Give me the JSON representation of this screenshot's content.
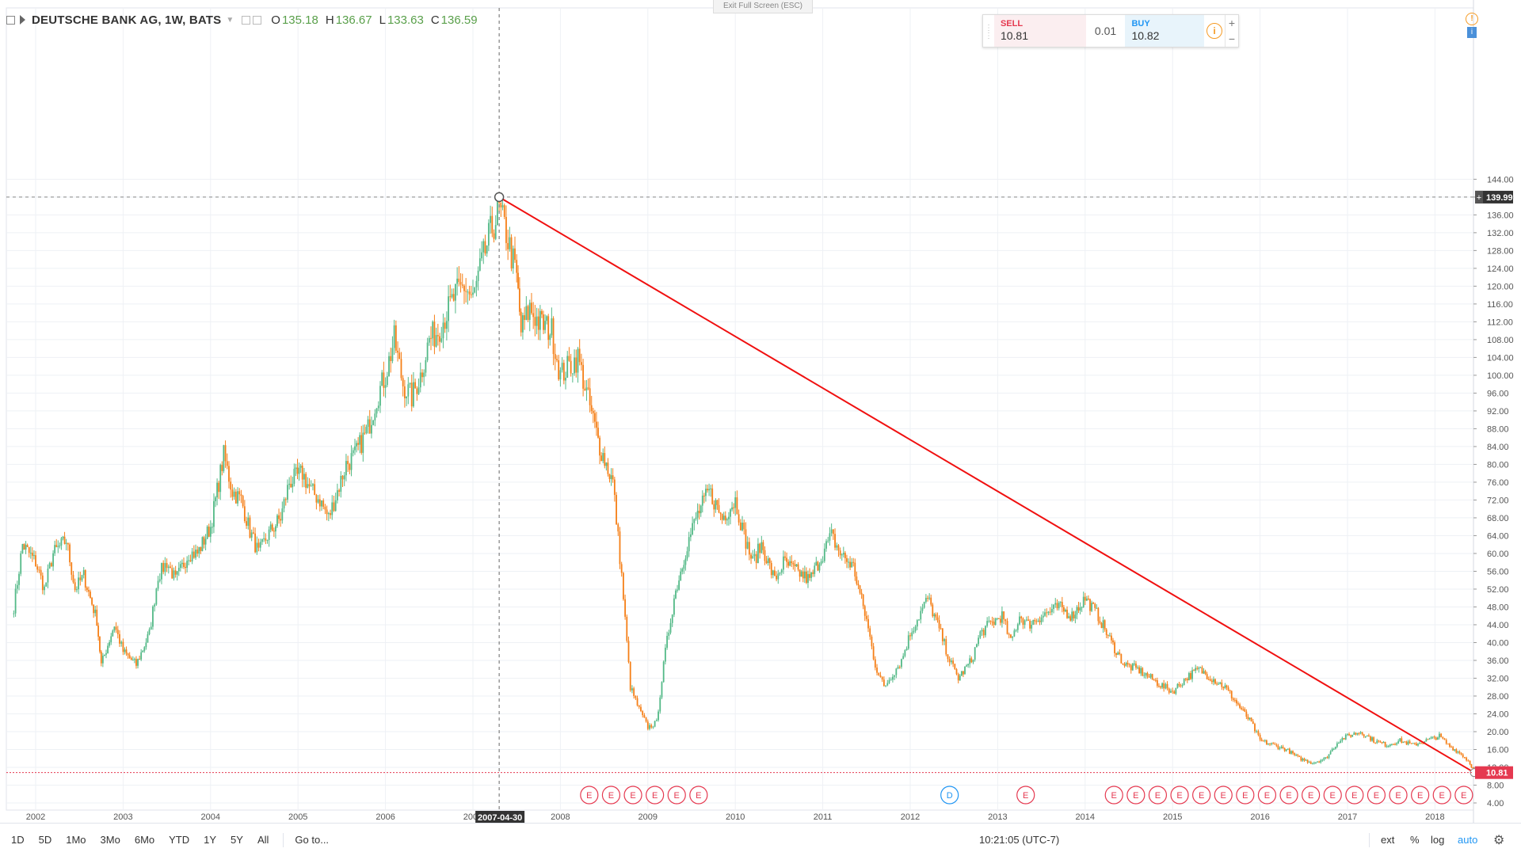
{
  "header": {
    "symbol": "DEUTSCHE BANK AG, 1W, BATS",
    "ohlc": [
      {
        "key": "O",
        "value": "135.18"
      },
      {
        "key": "H",
        "value": "136.67"
      },
      {
        "key": "L",
        "value": "133.63"
      },
      {
        "key": "C",
        "value": "136.59"
      }
    ]
  },
  "exit_fullscreen_label": "Exit Full Screen (ESC)",
  "trade_panel": {
    "sell_label": "SELL",
    "sell_price": "10.81",
    "spread": "0.01",
    "buy_label": "BUY",
    "buy_price": "10.82",
    "plus": "+",
    "minus": "−"
  },
  "bottom_toolbar": {
    "ranges": [
      "1D",
      "5D",
      "1Mo",
      "3Mo",
      "6Mo",
      "YTD",
      "1Y",
      "5Y",
      "All"
    ],
    "goto_label": "Go to...",
    "time": "10:21:05 (UTC-7)",
    "ext": "ext",
    "percent": "%",
    "log": "log",
    "auto": "auto"
  },
  "colors": {
    "up": "#53b987",
    "down": "#f57f17",
    "trendline": "#f01010",
    "axis_text": "#555555",
    "grid": "#eef1f5",
    "earnings_red": "#e53950",
    "dividend_blue": "#2196f3",
    "price_label_bg": "#e53950",
    "crosshair_label_bg": "#333333"
  },
  "chart_data": {
    "type": "candlestick",
    "title": "DEUTSCHE BANK AG, 1W, BATS",
    "y_range": [
      4,
      146
    ],
    "y_ticks": [
      "4.00",
      "8.00",
      "12.00",
      "16.00",
      "20.00",
      "24.00",
      "28.00",
      "32.00",
      "36.00",
      "40.00",
      "44.00",
      "48.00",
      "52.00",
      "56.00",
      "60.00",
      "64.00",
      "68.00",
      "72.00",
      "76.00",
      "80.00",
      "84.00",
      "88.00",
      "92.00",
      "96.00",
      "100.00",
      "104.00",
      "108.00",
      "112.00",
      "116.00",
      "120.00",
      "124.00",
      "128.00",
      "132.00",
      "136.00",
      "140.00",
      "144.00"
    ],
    "x_ticks": [
      "2002",
      "2003",
      "2004",
      "2005",
      "2006",
      "2007",
      "2008",
      "2009",
      "2010",
      "2011",
      "2012",
      "2013",
      "2014",
      "2015",
      "2016",
      "2017",
      "2018"
    ],
    "crosshair_x_label": "2007-04-30",
    "crosshair_y_label": "139.99",
    "last_price_label": "10.81",
    "close_path": [
      [
        2001.75,
        48
      ],
      [
        2001.85,
        62
      ],
      [
        2002.0,
        58
      ],
      [
        2002.1,
        52
      ],
      [
        2002.2,
        60
      ],
      [
        2002.35,
        63
      ],
      [
        2002.45,
        52
      ],
      [
        2002.55,
        55
      ],
      [
        2002.7,
        45
      ],
      [
        2002.75,
        35
      ],
      [
        2002.9,
        44
      ],
      [
        2003.0,
        38
      ],
      [
        2003.15,
        35
      ],
      [
        2003.3,
        42
      ],
      [
        2003.4,
        55
      ],
      [
        2003.5,
        58
      ],
      [
        2003.6,
        54
      ],
      [
        2003.75,
        60
      ],
      [
        2003.85,
        60
      ],
      [
        2004.0,
        66
      ],
      [
        2004.15,
        82
      ],
      [
        2004.25,
        74
      ],
      [
        2004.35,
        72
      ],
      [
        2004.45,
        65
      ],
      [
        2004.55,
        60
      ],
      [
        2004.65,
        64
      ],
      [
        2004.8,
        68
      ],
      [
        2004.9,
        76
      ],
      [
        2005.05,
        78
      ],
      [
        2005.15,
        74
      ],
      [
        2005.25,
        72
      ],
      [
        2005.35,
        68
      ],
      [
        2005.45,
        74
      ],
      [
        2005.55,
        80
      ],
      [
        2005.65,
        82
      ],
      [
        2005.8,
        88
      ],
      [
        2005.9,
        95
      ],
      [
        2006.0,
        100
      ],
      [
        2006.1,
        108
      ],
      [
        2006.2,
        98
      ],
      [
        2006.3,
        95
      ],
      [
        2006.4,
        100
      ],
      [
        2006.5,
        108
      ],
      [
        2006.6,
        110
      ],
      [
        2006.7,
        114
      ],
      [
        2006.8,
        118
      ],
      [
        2006.9,
        120
      ],
      [
        2007.0,
        117
      ],
      [
        2007.1,
        125
      ],
      [
        2007.2,
        132
      ],
      [
        2007.3,
        137
      ],
      [
        2007.38,
        132
      ],
      [
        2007.5,
        122
      ],
      [
        2007.55,
        110
      ],
      [
        2007.65,
        115
      ],
      [
        2007.75,
        112
      ],
      [
        2007.9,
        110
      ],
      [
        2008.0,
        100
      ],
      [
        2008.2,
        104
      ],
      [
        2008.3,
        96
      ],
      [
        2008.45,
        84
      ],
      [
        2008.6,
        76
      ],
      [
        2008.7,
        55
      ],
      [
        2008.8,
        30
      ],
      [
        2008.9,
        25
      ],
      [
        2009.0,
        21
      ],
      [
        2009.1,
        22
      ],
      [
        2009.2,
        38
      ],
      [
        2009.3,
        50
      ],
      [
        2009.45,
        62
      ],
      [
        2009.55,
        68
      ],
      [
        2009.7,
        74
      ],
      [
        2009.85,
        68
      ],
      [
        2010.0,
        72
      ],
      [
        2010.1,
        64
      ],
      [
        2010.2,
        58
      ],
      [
        2010.3,
        62
      ],
      [
        2010.45,
        54
      ],
      [
        2010.55,
        58
      ],
      [
        2010.7,
        56
      ],
      [
        2010.85,
        54
      ],
      [
        2011.0,
        60
      ],
      [
        2011.1,
        64
      ],
      [
        2011.2,
        60
      ],
      [
        2011.35,
        57
      ],
      [
        2011.5,
        45
      ],
      [
        2011.6,
        35
      ],
      [
        2011.7,
        30
      ],
      [
        2011.8,
        33
      ],
      [
        2011.9,
        36
      ],
      [
        2012.0,
        42
      ],
      [
        2012.1,
        46
      ],
      [
        2012.2,
        50
      ],
      [
        2012.35,
        42
      ],
      [
        2012.45,
        36
      ],
      [
        2012.55,
        32
      ],
      [
        2012.7,
        36
      ],
      [
        2012.8,
        42
      ],
      [
        2012.9,
        44
      ],
      [
        2013.05,
        46
      ],
      [
        2013.15,
        40
      ],
      [
        2013.25,
        46
      ],
      [
        2013.35,
        44
      ],
      [
        2013.5,
        46
      ],
      [
        2013.7,
        48
      ],
      [
        2013.85,
        46
      ],
      [
        2014.0,
        50
      ],
      [
        2014.15,
        46
      ],
      [
        2014.3,
        40
      ],
      [
        2014.45,
        35
      ],
      [
        2014.6,
        34
      ],
      [
        2014.75,
        32
      ],
      [
        2014.9,
        30
      ],
      [
        2015.0,
        29
      ],
      [
        2015.15,
        32
      ],
      [
        2015.3,
        34
      ],
      [
        2015.45,
        32
      ],
      [
        2015.6,
        30
      ],
      [
        2015.75,
        26
      ],
      [
        2015.9,
        22
      ],
      [
        2016.0,
        18
      ],
      [
        2016.15,
        17
      ],
      [
        2016.3,
        16
      ],
      [
        2016.45,
        14
      ],
      [
        2016.6,
        13
      ],
      [
        2016.75,
        14
      ],
      [
        2016.9,
        18
      ],
      [
        2017.0,
        19
      ],
      [
        2017.15,
        20
      ],
      [
        2017.3,
        18
      ],
      [
        2017.45,
        17
      ],
      [
        2017.6,
        18
      ],
      [
        2017.75,
        17
      ],
      [
        2017.9,
        18
      ],
      [
        2018.05,
        19
      ],
      [
        2018.15,
        17
      ],
      [
        2018.3,
        15
      ],
      [
        2018.4,
        13
      ],
      [
        2018.45,
        11
      ]
    ],
    "trendline": {
      "start": [
        2007.3,
        139.99
      ],
      "end": [
        2018.45,
        10.81
      ]
    },
    "events": [
      {
        "type": "E",
        "x": 2008.33
      },
      {
        "type": "E",
        "x": 2008.58
      },
      {
        "type": "E",
        "x": 2008.83
      },
      {
        "type": "E",
        "x": 2009.08
      },
      {
        "type": "E",
        "x": 2009.33
      },
      {
        "type": "E",
        "x": 2009.58
      },
      {
        "type": "D",
        "x": 2012.45
      },
      {
        "type": "E",
        "x": 2013.32
      },
      {
        "type": "E",
        "x": 2014.33
      },
      {
        "type": "E",
        "x": 2014.58
      },
      {
        "type": "E",
        "x": 2014.83
      },
      {
        "type": "E",
        "x": 2015.08
      },
      {
        "type": "E",
        "x": 2015.33
      },
      {
        "type": "E",
        "x": 2015.58
      },
      {
        "type": "E",
        "x": 2015.83
      },
      {
        "type": "E",
        "x": 2016.08
      },
      {
        "type": "E",
        "x": 2016.33
      },
      {
        "type": "E",
        "x": 2016.58
      },
      {
        "type": "E",
        "x": 2016.83
      },
      {
        "type": "E",
        "x": 2017.08
      },
      {
        "type": "E",
        "x": 2017.33
      },
      {
        "type": "E",
        "x": 2017.58
      },
      {
        "type": "E",
        "x": 2017.83
      },
      {
        "type": "E",
        "x": 2018.08
      },
      {
        "type": "E",
        "x": 2018.33
      }
    ]
  }
}
